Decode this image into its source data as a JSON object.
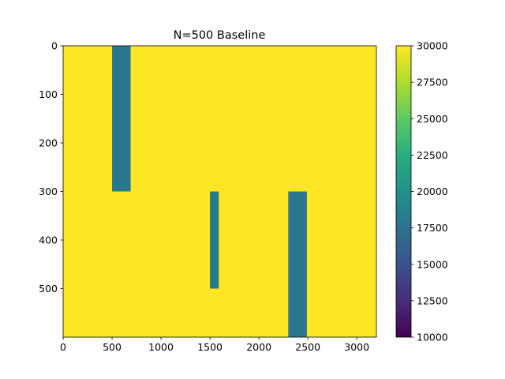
{
  "chart_data": {
    "type": "heatmap",
    "title": "N=500 Baseline",
    "xlabel": "",
    "ylabel": "",
    "xlim": [
      0,
      3200
    ],
    "ylim": [
      600,
      0
    ],
    "x_ticks": [
      "0",
      "500",
      "1000",
      "1500",
      "2000",
      "2500",
      "3000"
    ],
    "x_tick_values": [
      0,
      500,
      1000,
      1500,
      2000,
      2500,
      3000
    ],
    "y_ticks": [
      "0",
      "100",
      "200",
      "300",
      "400",
      "500"
    ],
    "y_tick_values": [
      0,
      100,
      200,
      300,
      400,
      500
    ],
    "background_value": 30000,
    "regions": [
      {
        "x0": 500,
        "x1": 690,
        "y0": 0,
        "y1": 300,
        "value": 18000
      },
      {
        "x0": 1500,
        "x1": 1590,
        "y0": 300,
        "y1": 500,
        "value": 18000
      },
      {
        "x0": 2300,
        "x1": 2490,
        "y0": 300,
        "y1": 600,
        "value": 18000
      }
    ],
    "colorbar": {
      "colormap": "viridis",
      "min": 10000,
      "max": 30000,
      "ticks": [
        "10000",
        "12500",
        "15000",
        "17500",
        "20000",
        "22500",
        "25000",
        "27500",
        "30000"
      ],
      "tick_values": [
        10000,
        12500,
        15000,
        17500,
        20000,
        22500,
        25000,
        27500,
        30000
      ]
    },
    "grid": false
  }
}
